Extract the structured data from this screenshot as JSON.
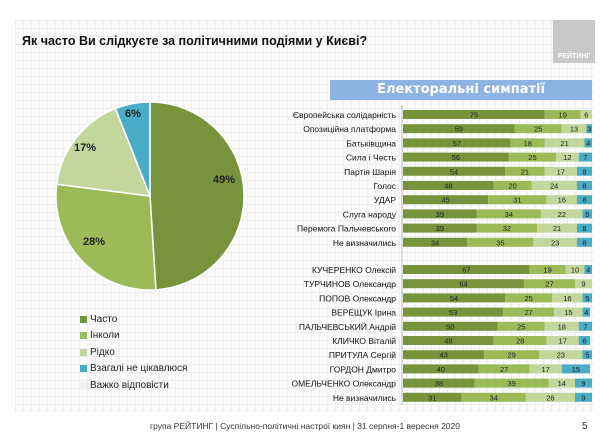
{
  "title": "Як часто Ви слідкуєте за політичними подіями у Києві?",
  "logo": "РЕЙТИНГ",
  "footer": "група РЕЙТИНГ  |  Суспільно-політичні настрої киян | 31 серпня-1 вересня  2020",
  "page": "5",
  "colors": [
    "#77933c",
    "#9bbb59",
    "#c3d69b",
    "#4bacc6",
    "#f2f2f2"
  ],
  "chart_data": [
    {
      "type": "pie",
      "title": "Як часто Ви слідкуєте за політичними подіями у Києві?",
      "labels": [
        "Часто",
        "Інколи",
        "Рідко",
        "Взагалі не цікавлюся",
        "Важко відповісти"
      ],
      "values": [
        49,
        28,
        17,
        6,
        0
      ],
      "data_labels": [
        "49%",
        "28%",
        "17%",
        "6%",
        ""
      ],
      "legend": "bottom-left"
    },
    {
      "type": "bar",
      "stacked": true,
      "orientation": "horizontal",
      "title": "Електоральні симпатії",
      "series_names": [
        "Часто",
        "Інколи",
        "Рідко",
        "Взагалі не цікавлюся"
      ],
      "groups": [
        {
          "categories": [
            "Європейська солідарність",
            "Опозиційна платформа",
            "Батьківщина",
            "Сила і Честь",
            "Партія Шарія",
            "Голос",
            "УДАР",
            "Слуга народу",
            "Перемога Пальчевського",
            "Не визначились"
          ],
          "values": [
            [
              75,
              19,
              6,
              0
            ],
            [
              59,
              25,
              13,
              3
            ],
            [
              57,
              18,
              21,
              4
            ],
            [
              56,
              25,
              12,
              7
            ],
            [
              54,
              21,
              17,
              8
            ],
            [
              48,
              20,
              24,
              8
            ],
            [
              45,
              31,
              16,
              8
            ],
            [
              39,
              34,
              22,
              5
            ],
            [
              39,
              32,
              21,
              8
            ],
            [
              34,
              35,
              23,
              8
            ]
          ]
        },
        {
          "categories": [
            "КУЧЕРЕНКО Олексій",
            "ТУРЧИНОВ Олександр",
            "ПОПОВ Олександр",
            "ВЕРЕЩУК Ірина",
            "ПАЛЬЧЕВСЬКИЙ Андрій",
            "КЛИЧКО Віталій",
            "ПРИТУЛА Сергій",
            "ГОРДОН Дмитро",
            "ОМЕЛЬЧЕНКО Олександр",
            "Не визначились"
          ],
          "values": [
            [
              67,
              19,
              10,
              4
            ],
            [
              64,
              27,
              9,
              0
            ],
            [
              54,
              25,
              16,
              5
            ],
            [
              53,
              27,
              15,
              4
            ],
            [
              50,
              25,
              18,
              7
            ],
            [
              48,
              28,
              17,
              6
            ],
            [
              43,
              29,
              23,
              5
            ],
            [
              40,
              27,
              17,
              15
            ],
            [
              38,
              39,
              14,
              9
            ],
            [
              31,
              34,
              26,
              9
            ]
          ]
        }
      ]
    }
  ]
}
